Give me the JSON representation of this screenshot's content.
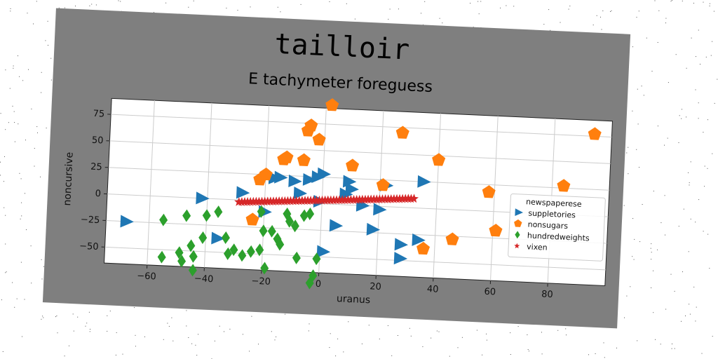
{
  "chart_data": {
    "type": "scatter",
    "title": "tailloir",
    "subtitle": "E tachymeter foreguess",
    "xlabel": "uranus",
    "ylabel": "noncursive",
    "xlim": [
      -75,
      100
    ],
    "ylim": [
      -65,
      90
    ],
    "xticks": [
      -60,
      -40,
      -20,
      0,
      20,
      40,
      60,
      80
    ],
    "yticks": [
      -50,
      -25,
      0,
      25,
      50,
      75
    ],
    "grid": true,
    "legend": {
      "title": "newspaperese",
      "placement": "right"
    },
    "series": [
      {
        "name": "suppletories",
        "marker": "triangle-right",
        "color": "#1f77b4",
        "x": [
          -68,
          -42,
          -36,
          -28,
          -20,
          -17,
          -15,
          -10,
          -8,
          -5,
          -2,
          0,
          1,
          5,
          8,
          9,
          10,
          14,
          18,
          20,
          22,
          28,
          28,
          34,
          35,
          -1
        ],
        "y": [
          -25,
          0,
          -37,
          7,
          -10,
          22,
          23,
          20,
          9,
          22,
          25,
          28,
          -45,
          -20,
          10,
          22,
          15,
          0,
          -22,
          -3,
          20,
          -35,
          -48,
          -30,
          25,
          2
        ]
      },
      {
        "name": "nonsugars",
        "marker": "pentagon",
        "color": "#ff7f0e",
        "x": [
          -24,
          -22,
          -20,
          -14,
          -13,
          -7,
          -6,
          -5,
          -2,
          2,
          10,
          21,
          27,
          36,
          40,
          46,
          58,
          61,
          84,
          94
        ],
        "y": [
          -18,
          20,
          25,
          40,
          42,
          40,
          68,
          73,
          60,
          93,
          37,
          20,
          70,
          -38,
          46,
          -28,
          18,
          -18,
          27,
          77
        ]
      },
      {
        "name": "hundredweights",
        "marker": "diamond",
        "color": "#2ca02c",
        "x": [
          -55,
          -55,
          -49,
          -48,
          -47,
          -45,
          -44,
          -44,
          -41,
          -40,
          -36,
          -33,
          -32,
          -30,
          -27,
          -24,
          -21,
          -21,
          -20,
          -19,
          -17,
          -15,
          -14,
          -12,
          -11,
          -9,
          -8,
          -6,
          -4,
          -3,
          -2,
          -1
        ],
        "y": [
          -22,
          -57,
          -52,
          -60,
          -17,
          -45,
          -55,
          -68,
          -37,
          -16,
          -12,
          -36,
          -51,
          -47,
          -52,
          -48,
          -10,
          -46,
          -28,
          -63,
          -28,
          -35,
          -40,
          -11,
          -18,
          -22,
          -52,
          -12,
          -10,
          -75,
          -68,
          -52
        ]
      },
      {
        "name": "vixen",
        "marker": "star",
        "color": "#d62728",
        "x": [
          -29,
          -28,
          -27,
          -26,
          -25,
          -24,
          -23,
          -22,
          -21,
          -20,
          -19,
          -18,
          -17,
          -16,
          -15,
          -14,
          -13,
          -12,
          -11,
          -10,
          -9,
          -8,
          -7,
          -6,
          -5,
          -4,
          -3,
          -2,
          -1,
          0,
          1,
          2,
          3,
          4,
          5,
          6,
          7,
          8,
          9,
          10,
          11,
          12,
          13,
          14,
          15,
          16,
          17,
          18,
          19,
          20,
          21,
          22,
          23,
          24,
          25,
          26,
          27,
          28,
          29,
          30,
          31,
          32
        ],
        "y": [
          -2.0,
          -1.8,
          -1.6,
          -1.5,
          -1.3,
          -1.1,
          -0.9,
          -0.8,
          -0.6,
          -0.4,
          -0.2,
          0.0,
          0.1,
          0.3,
          0.5,
          0.7,
          0.8,
          1.0,
          1.2,
          1.4,
          1.5,
          1.7,
          1.9,
          2.1,
          2.2,
          2.4,
          2.6,
          2.8,
          2.9,
          3.1,
          3.3,
          3.5,
          3.6,
          3.8,
          4.0,
          4.2,
          4.3,
          4.5,
          4.7,
          4.9,
          5.0,
          5.2,
          5.4,
          5.6,
          5.7,
          5.9,
          6.1,
          6.3,
          6.4,
          6.6,
          6.8,
          7.0,
          7.1,
          7.3,
          7.5,
          7.7,
          7.8,
          8.0,
          8.2,
          8.4,
          8.5,
          8.7
        ]
      }
    ]
  }
}
